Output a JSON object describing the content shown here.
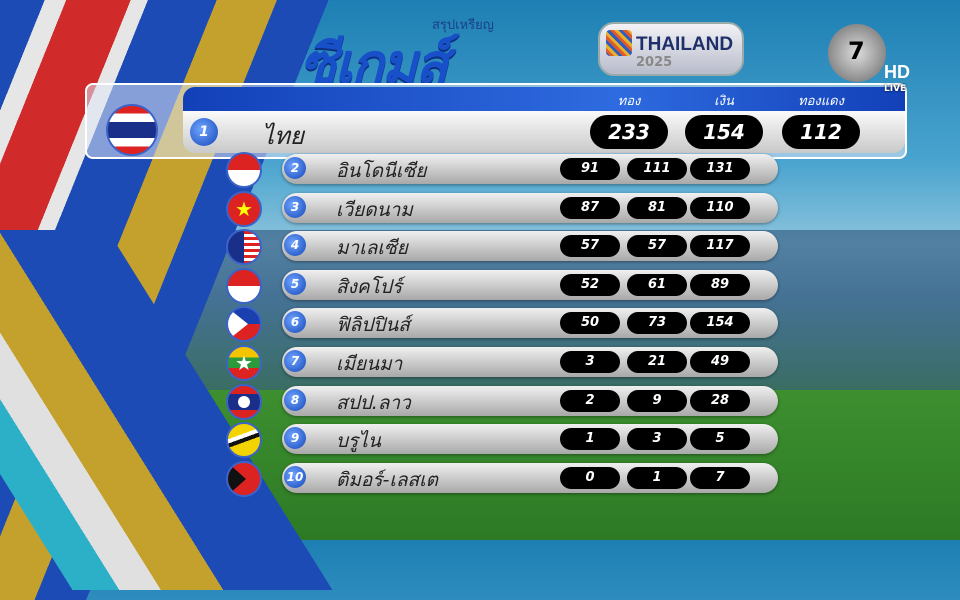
{
  "header": {
    "subtitle": "สรุปเหรียญ",
    "title": "ซีเกมส์",
    "event_name": "THAILAND",
    "event_year": "2025"
  },
  "channel": {
    "logo": "7",
    "hd": "HD",
    "live": "LIVE"
  },
  "columns": [
    "ทอง",
    "เงิน",
    "ทองแดง"
  ],
  "leader": {
    "rank": "1",
    "country": "ไทย",
    "flag": "thailand",
    "gold": "233",
    "silver": "154",
    "bronze": "112"
  },
  "rows": [
    {
      "rank": "2",
      "country": "อินโดนีเซีย",
      "flag": "indonesia",
      "gold": "91",
      "silver": "111",
      "bronze": "131"
    },
    {
      "rank": "3",
      "country": "เวียดนาม",
      "flag": "vietnam",
      "gold": "87",
      "silver": "81",
      "bronze": "110"
    },
    {
      "rank": "4",
      "country": "มาเลเซีย",
      "flag": "malaysia",
      "gold": "57",
      "silver": "57",
      "bronze": "117"
    },
    {
      "rank": "5",
      "country": "สิงคโปร์",
      "flag": "singapore",
      "gold": "52",
      "silver": "61",
      "bronze": "89"
    },
    {
      "rank": "6",
      "country": "ฟิลิปปินส์",
      "flag": "philippines",
      "gold": "50",
      "silver": "73",
      "bronze": "154"
    },
    {
      "rank": "7",
      "country": "เมียนมา",
      "flag": "myanmar",
      "gold": "3",
      "silver": "21",
      "bronze": "49"
    },
    {
      "rank": "8",
      "country": "สปป.ลาว",
      "flag": "laos",
      "gold": "2",
      "silver": "9",
      "bronze": "28"
    },
    {
      "rank": "9",
      "country": "บรูไน",
      "flag": "brunei",
      "gold": "1",
      "silver": "3",
      "bronze": "5"
    },
    {
      "rank": "10",
      "country": "ติมอร์-เลสเต",
      "flag": "timor-leste",
      "gold": "0",
      "silver": "1",
      "bronze": "7"
    }
  ]
}
